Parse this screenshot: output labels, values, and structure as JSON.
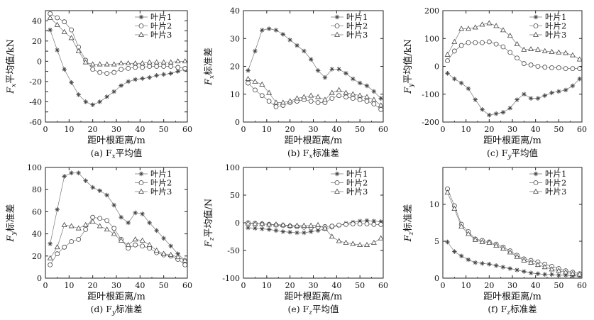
{
  "figure": {
    "marker_color": "#444444",
    "line_color": "#777777",
    "axis_color": "#222222"
  },
  "chart_data": [
    {
      "panel": "a",
      "type": "line",
      "caption": "(a) Fx平均值",
      "caption_prefix": "(a) F",
      "caption_sub": "x",
      "caption_suffix": "平均值",
      "ylabel_prefix": "F",
      "ylabel_sub": "x",
      "ylabel_suffix": "平均值/kN",
      "xlabel": "距叶根距离/m",
      "xlim": [
        0,
        60
      ],
      "ylim": [
        -60,
        50
      ],
      "xticks": [
        0,
        10,
        20,
        30,
        40,
        50,
        60
      ],
      "yticks": [
        -60,
        -50,
        -40,
        -30,
        -20,
        -10,
        0,
        10,
        20,
        30,
        40,
        50
      ],
      "ytick_labels": [
        "-60",
        "",
        "-40",
        "",
        "-20",
        "",
        "0",
        "",
        "20",
        "",
        "40",
        ""
      ],
      "x": [
        2,
        5,
        8,
        11,
        14,
        17,
        20,
        23,
        26,
        29,
        32,
        35,
        38,
        41,
        44,
        47,
        50,
        53,
        56,
        59
      ],
      "series": [
        {
          "name": "叶片1",
          "marker": "star",
          "values": [
            31,
            11,
            -8,
            -21,
            -33,
            -40,
            -43,
            -40,
            -35,
            -30,
            -24,
            -20,
            -18,
            -17,
            -16,
            -14,
            -13,
            -12,
            -10,
            -8
          ]
        },
        {
          "name": "叶片2",
          "marker": "circle",
          "values": [
            47,
            43,
            39,
            31,
            14,
            1,
            -8,
            -11,
            -12,
            -11,
            -8,
            -7,
            -6,
            -6,
            -5,
            -5,
            -5,
            -5,
            -6,
            -7
          ]
        },
        {
          "name": "叶片3",
          "marker": "triangle",
          "values": [
            43,
            36,
            29,
            23,
            10,
            -1,
            -3,
            -3,
            -3,
            -3,
            -2,
            -2,
            -2,
            -2,
            -1,
            -1,
            -1,
            -1,
            0,
            0
          ]
        }
      ]
    },
    {
      "panel": "b",
      "type": "line",
      "caption": "(b) Fx标准差",
      "caption_prefix": "(b) F",
      "caption_sub": "x",
      "caption_suffix": "标准差",
      "ylabel_prefix": "F",
      "ylabel_sub": "x",
      "ylabel_suffix": "标准差",
      "xlabel": "距叶根距离/m",
      "xlim": [
        0,
        60
      ],
      "ylim": [
        0,
        40
      ],
      "xticks": [
        0,
        10,
        20,
        30,
        40,
        50,
        60
      ],
      "yticks": [
        0,
        10,
        20,
        30,
        40
      ],
      "ytick_labels": [
        "0",
        "10",
        "20",
        "30",
        "40"
      ],
      "x": [
        2,
        5,
        8,
        11,
        14,
        17,
        20,
        23,
        26,
        29,
        32,
        35,
        38,
        41,
        44,
        47,
        50,
        53,
        56,
        59
      ],
      "series": [
        {
          "name": "叶片1",
          "marker": "star",
          "values": [
            18.5,
            25.5,
            33,
            33.5,
            33,
            31.5,
            29.5,
            27.5,
            25.5,
            22.5,
            18.5,
            16,
            19,
            19,
            17.5,
            15.5,
            14,
            13,
            11,
            8.5
          ]
        },
        {
          "name": "叶片2",
          "marker": "circle",
          "values": [
            14,
            11.5,
            9.5,
            7.5,
            5.5,
            6,
            7,
            7.5,
            8,
            7.5,
            7,
            7,
            8.5,
            9.5,
            9,
            8.5,
            8,
            7.5,
            6.5,
            4.5
          ]
        },
        {
          "name": "叶片3",
          "marker": "triangle",
          "values": [
            15.5,
            14.5,
            13.5,
            10.5,
            7,
            7,
            7.5,
            8.5,
            9,
            9.5,
            9,
            8,
            10.5,
            11.5,
            10.5,
            10,
            9.5,
            9,
            8,
            6
          ]
        }
      ]
    },
    {
      "panel": "c",
      "type": "line",
      "caption": "(c) Fy平均值",
      "caption_prefix": "(c) F",
      "caption_sub": "y",
      "caption_suffix": "平均值",
      "ylabel_prefix": "F",
      "ylabel_sub": "y",
      "ylabel_suffix": "平均值/kN",
      "xlabel": "距叶根距离/m",
      "xlim": [
        0,
        60
      ],
      "ylim": [
        -200,
        200
      ],
      "xticks": [
        0,
        10,
        20,
        30,
        40,
        50,
        60
      ],
      "yticks": [
        -200,
        -100,
        0,
        100,
        200
      ],
      "ytick_labels": [
        "-200",
        "-100",
        "0",
        "100",
        "200"
      ],
      "x": [
        2,
        5,
        8,
        11,
        14,
        17,
        20,
        23,
        26,
        29,
        32,
        35,
        38,
        41,
        44,
        47,
        50,
        53,
        56,
        59
      ],
      "series": [
        {
          "name": "叶片1",
          "marker": "star",
          "values": [
            -25,
            -45,
            -60,
            -80,
            -120,
            -155,
            -175,
            -170,
            -165,
            -150,
            -120,
            -100,
            -115,
            -115,
            -105,
            -95,
            -90,
            -85,
            -70,
            -45
          ]
        },
        {
          "name": "叶片2",
          "marker": "circle",
          "values": [
            20,
            55,
            75,
            85,
            85,
            85,
            88,
            80,
            70,
            50,
            30,
            10,
            5,
            0,
            -3,
            -5,
            -5,
            -8,
            -8,
            -8
          ]
        },
        {
          "name": "叶片3",
          "marker": "triangle",
          "values": [
            42,
            88,
            135,
            135,
            140,
            150,
            155,
            145,
            130,
            110,
            80,
            60,
            62,
            60,
            55,
            52,
            50,
            48,
            40,
            25
          ]
        }
      ]
    },
    {
      "panel": "d",
      "type": "line",
      "caption": "(d) Fy标准差",
      "caption_prefix": "(d) F",
      "caption_sub": "y",
      "caption_suffix": "标准差",
      "ylabel_prefix": "F",
      "ylabel_sub": "y",
      "ylabel_suffix": "标准差",
      "xlabel": "距叶根距离/m",
      "xlim": [
        0,
        60
      ],
      "ylim": [
        0,
        100
      ],
      "xticks": [
        0,
        10,
        20,
        30,
        40,
        50,
        60
      ],
      "yticks": [
        0,
        20,
        40,
        60,
        80,
        100
      ],
      "ytick_labels": [
        "0",
        "20",
        "40",
        "60",
        "80",
        "100"
      ],
      "x": [
        2,
        5,
        8,
        11,
        14,
        17,
        20,
        23,
        26,
        29,
        32,
        35,
        38,
        41,
        44,
        47,
        50,
        53,
        56,
        59
      ],
      "series": [
        {
          "name": "叶片1",
          "marker": "star",
          "values": [
            31,
            62,
            92,
            95,
            95,
            88,
            82,
            79,
            75,
            66,
            55,
            50,
            59,
            58,
            50,
            43,
            36,
            29,
            22,
            16
          ]
        },
        {
          "name": "叶片2",
          "marker": "circle",
          "values": [
            12,
            22,
            28,
            33,
            35,
            44,
            55,
            54,
            52,
            45,
            35,
            27,
            30,
            29,
            27,
            23,
            21,
            20,
            17,
            12
          ]
        },
        {
          "name": "叶片3",
          "marker": "triangle",
          "values": [
            18,
            28,
            48,
            47,
            45,
            48,
            51,
            47,
            44,
            40,
            34,
            30,
            35,
            34,
            30,
            25,
            22,
            21,
            19,
            16
          ]
        }
      ]
    },
    {
      "panel": "e",
      "type": "line",
      "caption": "(e) Fz平均值",
      "caption_prefix": "(e) F",
      "caption_sub": "z",
      "caption_suffix": "平均值",
      "ylabel_prefix": "F",
      "ylabel_sub": "z",
      "ylabel_suffix": "平均值/N",
      "xlabel": "距叶根距离/m",
      "xlim": [
        0,
        60
      ],
      "ylim": [
        -100,
        100
      ],
      "xticks": [
        0,
        10,
        20,
        30,
        40,
        50,
        60
      ],
      "yticks": [
        -100,
        -50,
        0,
        50,
        100
      ],
      "ytick_labels": [
        "-100",
        "-50",
        "0",
        "50",
        "100"
      ],
      "x": [
        2,
        5,
        8,
        11,
        14,
        17,
        20,
        23,
        26,
        29,
        32,
        35,
        38,
        41,
        44,
        47,
        50,
        53,
        56,
        59
      ],
      "series": [
        {
          "name": "叶片1",
          "marker": "star",
          "values": [
            -9,
            -10,
            -11,
            -12,
            -14,
            -16,
            -17,
            -18,
            -18,
            -16,
            -14,
            -11,
            -8,
            -5,
            -1,
            1,
            3,
            4,
            3,
            2
          ]
        },
        {
          "name": "叶片2",
          "marker": "circle",
          "values": [
            0,
            -1,
            -2,
            -3,
            -4,
            -5,
            -6,
            -7,
            -8,
            -9,
            -8,
            -7,
            -6,
            -4,
            -3,
            -2,
            -2,
            -2,
            -3,
            -3
          ]
        },
        {
          "name": "叶片3",
          "marker": "triangle",
          "values": [
            -1,
            -2,
            -2,
            -3,
            -3,
            -4,
            -5,
            -5,
            -5,
            -5,
            -4,
            -10,
            -25,
            -33,
            -36,
            -38,
            -40,
            -40,
            -36,
            -28
          ]
        }
      ]
    },
    {
      "panel": "f",
      "type": "line",
      "caption": "(f) Fz标准差",
      "caption_prefix": "(f) F",
      "caption_sub": "z",
      "caption_suffix": "标准差",
      "ylabel_prefix": "F",
      "ylabel_sub": "z",
      "ylabel_suffix": "标准差",
      "xlabel": "距叶根距离/m",
      "xlim": [
        0,
        60
      ],
      "ylim": [
        0,
        15
      ],
      "xticks": [
        0,
        10,
        20,
        30,
        40,
        50,
        60
      ],
      "yticks": [
        0,
        5,
        10,
        15
      ],
      "ytick_labels": [
        "0",
        "5",
        "10",
        ""
      ],
      "x": [
        2,
        5,
        8,
        11,
        14,
        17,
        20,
        23,
        26,
        29,
        32,
        35,
        38,
        41,
        44,
        47,
        50,
        53,
        56,
        59
      ],
      "series": [
        {
          "name": "叶片1",
          "marker": "star",
          "values": [
            4.9,
            3.6,
            3.0,
            2.5,
            2.1,
            2.0,
            1.9,
            1.7,
            1.5,
            1.3,
            1.1,
            0.9,
            0.7,
            0.6,
            0.5,
            0.5,
            0.4,
            0.4,
            0.3,
            0.3
          ]
        },
        {
          "name": "叶片2",
          "marker": "circle",
          "values": [
            12.1,
            9.8,
            7.3,
            6.3,
            5.3,
            5.1,
            4.9,
            4.6,
            4.2,
            3.7,
            3.1,
            2.6,
            2.4,
            2.2,
            1.9,
            1.6,
            1.3,
            1.0,
            0.8,
            0.6
          ]
        },
        {
          "name": "叶片3",
          "marker": "triangle",
          "values": [
            11.6,
            9.4,
            7.0,
            6.0,
            5.2,
            4.9,
            4.8,
            4.4,
            4.0,
            3.5,
            2.9,
            2.4,
            2.1,
            1.8,
            1.5,
            1.2,
            1.0,
            0.8,
            0.6,
            0.5
          ]
        }
      ]
    }
  ]
}
